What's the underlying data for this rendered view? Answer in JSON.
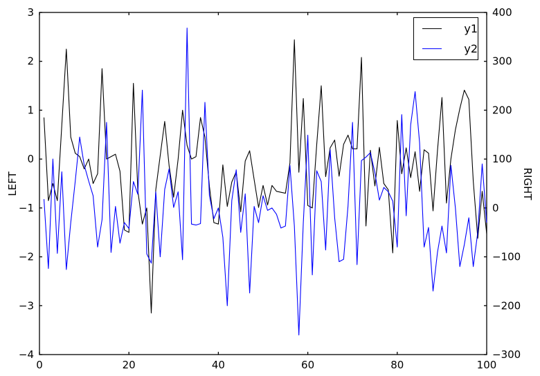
{
  "figure": {
    "background": "#ffffff",
    "frame_color": "#000000",
    "legend": {
      "entries": [
        {
          "label": "y1",
          "color": "#000000"
        },
        {
          "label": "y2",
          "color": "#0000ff"
        }
      ]
    }
  },
  "chart_data": {
    "type": "line",
    "title": "",
    "xlabel": "",
    "left_ylabel": "LEFT",
    "right_ylabel": "RIGHT",
    "grid": false,
    "legend_position": "upper right",
    "xlim": [
      0,
      100
    ],
    "left_ylim": [
      -4,
      3
    ],
    "right_ylim": [
      -300,
      400
    ],
    "x_ticks": [
      0,
      20,
      40,
      60,
      80,
      100
    ],
    "left_ticks": [
      3,
      2,
      1,
      0,
      -1,
      -2,
      -3,
      -4
    ],
    "right_ticks": [
      400,
      300,
      200,
      100,
      0,
      -100,
      -200,
      -300
    ],
    "x": [
      1,
      2,
      3,
      4,
      5,
      6,
      7,
      8,
      9,
      10,
      11,
      12,
      13,
      14,
      15,
      16,
      17,
      18,
      19,
      20,
      21,
      22,
      23,
      24,
      25,
      26,
      27,
      28,
      29,
      30,
      31,
      32,
      33,
      34,
      35,
      36,
      37,
      38,
      39,
      40,
      41,
      42,
      43,
      44,
      45,
      46,
      47,
      48,
      49,
      50,
      51,
      52,
      53,
      54,
      55,
      56,
      57,
      58,
      59,
      60,
      61,
      62,
      63,
      64,
      65,
      66,
      67,
      68,
      69,
      70,
      71,
      72,
      73,
      74,
      75,
      76,
      77,
      78,
      79,
      80,
      81,
      82,
      83,
      84,
      85,
      86,
      87,
      88,
      89,
      90,
      91,
      92,
      93,
      94,
      95,
      96,
      97,
      98,
      99,
      100
    ],
    "series": [
      {
        "name": "y1",
        "axis": "left",
        "color": "#000000",
        "values": [
          0.85,
          -0.85,
          -0.5,
          -0.85,
          0.7,
          2.25,
          0.45,
          0.12,
          0.05,
          -0.2,
          0,
          -0.5,
          -0.3,
          1.85,
          0,
          0.05,
          0.1,
          -0.25,
          -1.45,
          -1.5,
          1.55,
          -0.65,
          -1.33,
          -1,
          -3.15,
          -0.63,
          0.07,
          0.77,
          -0.14,
          -0.78,
          0,
          1,
          0.28,
          0,
          0.05,
          0.85,
          0.45,
          -0.56,
          -1.3,
          -1.33,
          -0.12,
          -0.97,
          -0.47,
          -0.26,
          -1.08,
          -0.04,
          0.17,
          -0.42,
          -0.99,
          -0.54,
          -0.94,
          -0.54,
          -0.66,
          -0.68,
          -0.7,
          -0.08,
          2.44,
          -0.27,
          1.24,
          -0.95,
          -1,
          0.3,
          1.5,
          -0.36,
          0.23,
          0.39,
          -0.35,
          0.3,
          0.49,
          0.21,
          0.21,
          2.08,
          -1.37,
          0.18,
          -0.55,
          0.24,
          -0.5,
          -0.63,
          -1.92,
          0.79,
          -0.3,
          0.23,
          -0.38,
          0.15,
          -0.66,
          0.19,
          0.12,
          -1.06,
          0.17,
          1.26,
          -0.9,
          0,
          0.6,
          1.03,
          1.41,
          1.22,
          -0.45,
          -1.62,
          -0.66,
          -1.53
        ]
      },
      {
        "name": "y2",
        "axis": "right",
        "color": "#0000ff",
        "values": [
          18,
          -124,
          100,
          -93,
          74,
          -126,
          -30,
          55,
          145,
          88,
          55,
          25,
          -80,
          -24,
          175,
          -91,
          3,
          -72,
          -30,
          -42,
          54,
          28,
          241,
          -94,
          -113,
          33,
          -100,
          38,
          80,
          1,
          33,
          -106,
          368,
          -33,
          -35,
          -32,
          216,
          25,
          -22,
          0,
          -60,
          -200,
          15,
          78,
          -50,
          29,
          -174,
          3,
          -30,
          25,
          -5,
          0,
          -13,
          -41,
          -37,
          87,
          -37,
          -260,
          -30,
          149,
          -137,
          76,
          54,
          -86,
          119,
          -20,
          -110,
          -105,
          4,
          175,
          -116,
          97,
          104,
          113,
          72,
          16,
          42,
          33,
          14,
          -80,
          191,
          -16,
          170,
          238,
          133,
          -80,
          -40,
          -170,
          -91,
          -37,
          -92,
          87,
          0,
          -120,
          -75,
          -20,
          -120,
          -50,
          90,
          -30
        ]
      }
    ]
  }
}
